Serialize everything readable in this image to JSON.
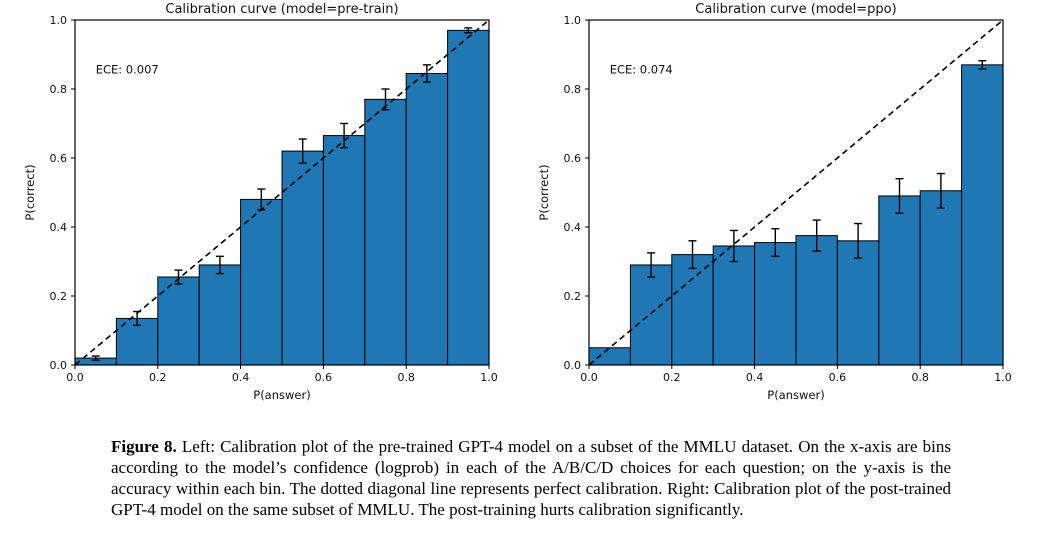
{
  "caption": {
    "label": "Figure 8.",
    "text": "Left: Calibration plot of the pre-trained GPT-4 model on a subset of the MMLU dataset. On the x-axis are bins according to the model’s confidence (logprob) in each of the A/B/C/D choices for each question; on the y-axis is the accuracy within each bin. The dotted diagonal line represents perfect calibration. Right: Calibration plot of the post-trained GPT-4 model on the same subset of MMLU. The post-training hurts calibration significantly."
  },
  "chart_data": [
    {
      "type": "bar",
      "title": "Calibration curve (model=pre-train)",
      "annotation": "ECE: 0.007",
      "xlabel": "P(answer)",
      "ylabel": "P(correct)",
      "xlim": [
        0.0,
        1.0
      ],
      "ylim": [
        0.0,
        1.0
      ],
      "grid": false,
      "legend": "none",
      "xticks": [
        0.0,
        0.2,
        0.4,
        0.6,
        0.8,
        1.0
      ],
      "yticks": [
        0.0,
        0.2,
        0.4,
        0.6,
        0.8,
        1.0
      ],
      "bin_edges": [
        0.0,
        0.1,
        0.2,
        0.3,
        0.4,
        0.5,
        0.6,
        0.7,
        0.8,
        0.9,
        1.0
      ],
      "values": [
        0.02,
        0.135,
        0.255,
        0.29,
        0.48,
        0.62,
        0.665,
        0.77,
        0.845,
        0.97
      ],
      "errors": [
        0.006,
        0.02,
        0.02,
        0.025,
        0.03,
        0.035,
        0.035,
        0.03,
        0.025,
        0.007
      ],
      "bar_color": "#1f77b4",
      "bar_edge_color": "#000000",
      "diagonal_line": "dashed y=x perfect calibration"
    },
    {
      "type": "bar",
      "title": "Calibration curve (model=ppo)",
      "annotation": "ECE: 0.074",
      "xlabel": "P(answer)",
      "ylabel": "P(correct)",
      "xlim": [
        0.0,
        1.0
      ],
      "ylim": [
        0.0,
        1.0
      ],
      "grid": false,
      "legend": "none",
      "xticks": [
        0.0,
        0.2,
        0.4,
        0.6,
        0.8,
        1.0
      ],
      "yticks": [
        0.0,
        0.2,
        0.4,
        0.6,
        0.8,
        1.0
      ],
      "bin_edges": [
        0.0,
        0.1,
        0.2,
        0.3,
        0.4,
        0.5,
        0.6,
        0.7,
        0.8,
        0.9,
        1.0
      ],
      "values": [
        0.05,
        0.29,
        0.32,
        0.345,
        0.355,
        0.375,
        0.36,
        0.49,
        0.505,
        0.87
      ],
      "errors": [
        0,
        0.035,
        0.04,
        0.045,
        0.04,
        0.045,
        0.05,
        0.05,
        0.05,
        0.012
      ],
      "bar_color": "#1f77b4",
      "bar_edge_color": "#000000",
      "diagonal_line": "dashed y=x perfect calibration"
    }
  ]
}
